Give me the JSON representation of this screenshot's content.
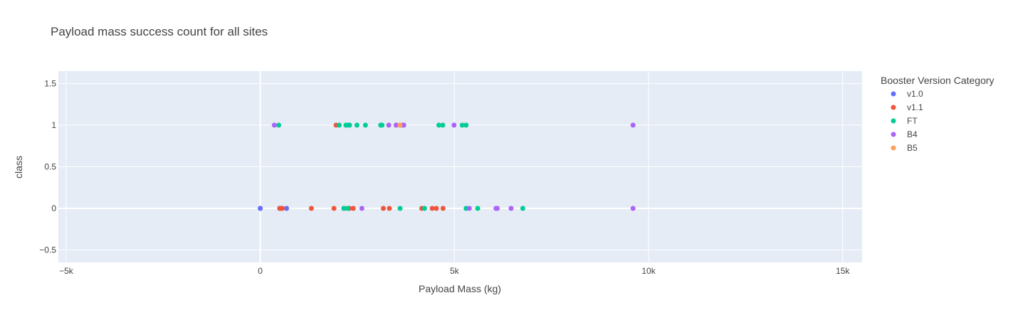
{
  "chart_data": {
    "type": "scatter",
    "title": "Payload mass success count for all sites",
    "xlabel": "Payload Mass (kg)",
    "ylabel": "class",
    "xlim": [
      -5200,
      15500
    ],
    "ylim": [
      -0.65,
      1.65
    ],
    "x_ticks": [
      -5000,
      0,
      5000,
      10000,
      15000
    ],
    "x_tick_labels": [
      "−5k",
      "0",
      "5k",
      "10k",
      "15k"
    ],
    "y_ticks": [
      -0.5,
      0,
      0.5,
      1,
      1.5
    ],
    "y_tick_labels": [
      "−0.5",
      "0",
      "0.5",
      "1",
      "1.5"
    ],
    "grid": true,
    "legend_title": "Booster Version Category",
    "legend_position": "right",
    "plot_background": "#e5ecf6",
    "series": [
      {
        "name": "v1.0",
        "color": "#636efa",
        "points": [
          [
            0,
            0
          ],
          [
            0,
            0
          ],
          [
            525,
            0
          ],
          [
            677,
            0
          ],
          [
            500,
            0
          ]
        ]
      },
      {
        "name": "v1.1",
        "color": "#ef553b",
        "points": [
          [
            500,
            0
          ],
          [
            570,
            0
          ],
          [
            1316,
            0
          ],
          [
            1898,
            0
          ],
          [
            2160,
            0
          ],
          [
            2296,
            0
          ],
          [
            2395,
            0
          ],
          [
            3170,
            0
          ],
          [
            3325,
            0
          ],
          [
            4159,
            0
          ],
          [
            4428,
            0
          ],
          [
            4535,
            0
          ],
          [
            4707,
            0
          ],
          [
            1952,
            1
          ],
          [
            3500,
            1
          ],
          [
            3600,
            1
          ]
        ]
      },
      {
        "name": "FT",
        "color": "#00cc96",
        "points": [
          [
            2150,
            0
          ],
          [
            2250,
            0
          ],
          [
            3600,
            0
          ],
          [
            4230,
            0
          ],
          [
            5300,
            0
          ],
          [
            5600,
            0
          ],
          [
            6761,
            0
          ],
          [
            475,
            1
          ],
          [
            2034,
            1
          ],
          [
            2205,
            1
          ],
          [
            2257,
            1
          ],
          [
            2300,
            1
          ],
          [
            2490,
            1
          ],
          [
            2708,
            1
          ],
          [
            3100,
            1
          ],
          [
            3136,
            1
          ],
          [
            4600,
            1
          ],
          [
            4700,
            1
          ],
          [
            5200,
            1
          ],
          [
            5300,
            1
          ]
        ]
      },
      {
        "name": "B4",
        "color": "#ab63fa",
        "points": [
          [
            2617,
            0
          ],
          [
            5384,
            0
          ],
          [
            6070,
            0
          ],
          [
            6104,
            0
          ],
          [
            6460,
            0
          ],
          [
            9600,
            0
          ],
          [
            362,
            1
          ],
          [
            3310,
            1
          ],
          [
            3500,
            1
          ],
          [
            3669,
            1
          ],
          [
            3696,
            1
          ],
          [
            4990,
            1
          ],
          [
            9600,
            1
          ]
        ]
      },
      {
        "name": "B5",
        "color": "#ffa15a",
        "points": [
          [
            3600,
            1
          ]
        ]
      }
    ]
  }
}
